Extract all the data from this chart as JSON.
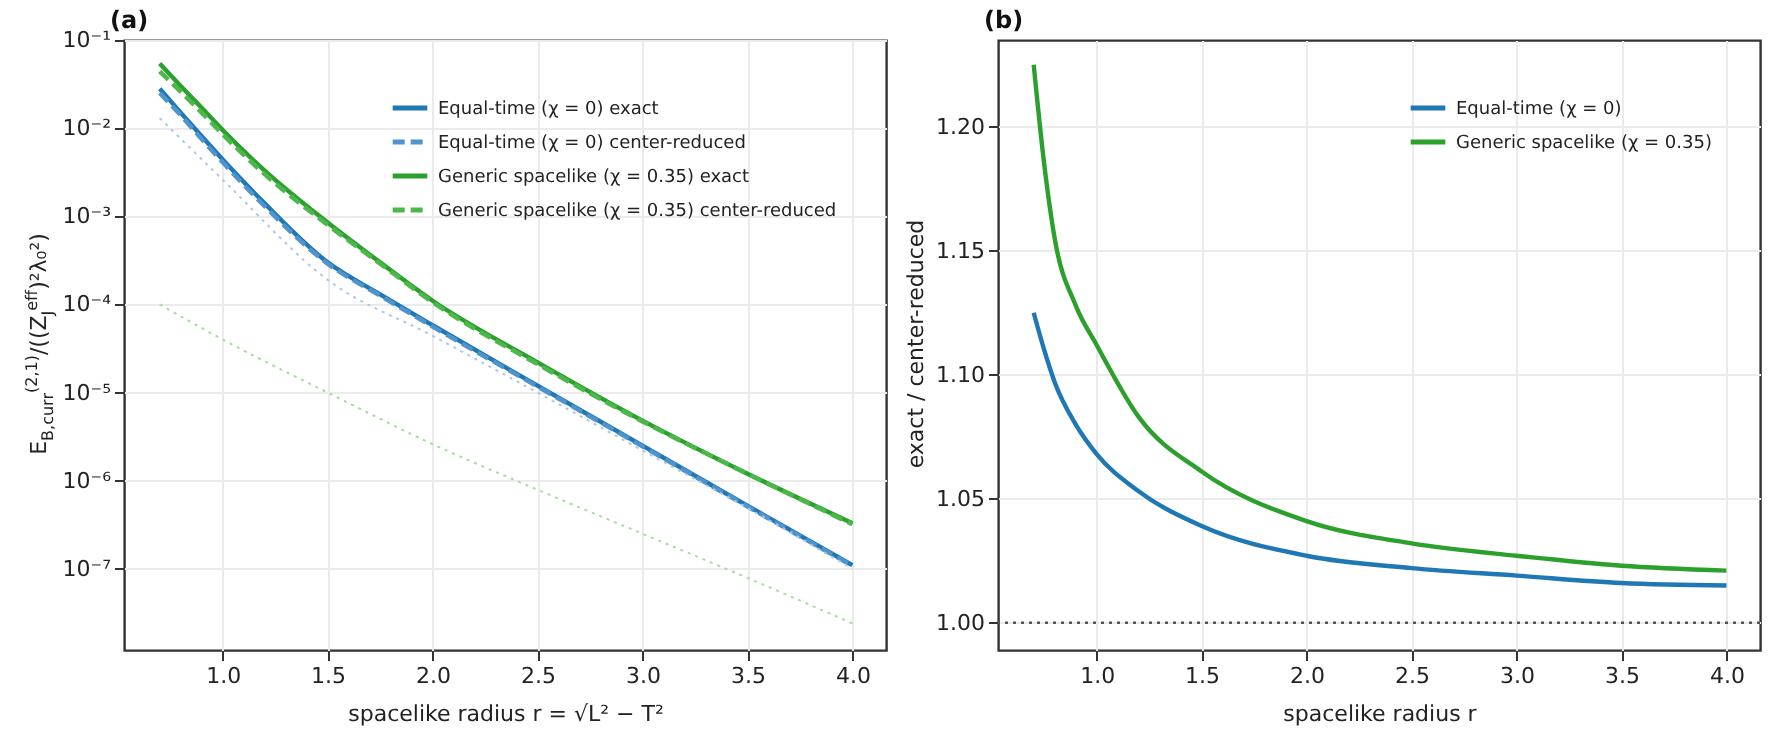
{
  "chart_data": [
    {
      "type": "line",
      "title": "(a)",
      "xlabel": "spacelike radius r = √L² − T²",
      "ylabel": "E$_{B,curr}$$^{(2,1)}$/((Z$_{J}$$^{eff}$)²λ₀²)",
      "x": [
        0.7,
        0.8,
        0.9,
        1.0,
        1.2,
        1.5,
        1.75,
        2.0,
        2.5,
        3.0,
        3.5,
        4.0
      ],
      "series": [
        {
          "name": "Equal-time (χ = 0) exact",
          "color": "#1f77b4",
          "line_style": "solid",
          "values": [
            0.028,
            0.015,
            0.0081,
            0.0044,
            0.0014,
            0.0003,
            0.00013,
            5.8e-05,
            1.2e-05,
            2.5e-06,
            5.2e-07,
            1.1e-07
          ]
        },
        {
          "name": "Equal-time (χ = 0) center-reduced",
          "color": "#4f94cd",
          "line_style": "dashed",
          "values": [
            0.025,
            0.014,
            0.0075,
            0.0041,
            0.0013,
            0.00029,
            0.000126,
            5.6e-05,
            1.17e-05,
            2.45e-06,
            5.1e-07,
            1.08e-07
          ]
        },
        {
          "name": "Generic spacelike (χ = 0.35) exact",
          "color": "#2ca02c",
          "line_style": "solid",
          "values": [
            0.054,
            0.03,
            0.017,
            0.0095,
            0.0033,
            0.00085,
            0.0003,
            0.00011,
            2.2e-05,
            4.8e-06,
            1.2e-06,
            3.3e-07
          ]
        },
        {
          "name": "Generic spacelike (χ = 0.35) center-reduced",
          "color": "#4cb84c",
          "line_style": "dashed",
          "values": [
            0.044,
            0.026,
            0.015,
            0.0085,
            0.003,
            0.0008,
            0.00029,
            0.000106,
            2.1e-05,
            4.7e-06,
            1.2e-06,
            3.2e-07
          ]
        },
        {
          "color": "#aec7e8",
          "line_style": "dotted",
          "x": [
            0.7,
            1.0,
            1.5,
            2.0,
            2.5,
            3.0,
            3.5,
            4.0
          ],
          "values": [
            0.013,
            0.0026,
            0.00019,
            4.4e-05,
            1e-05,
            2.2e-06,
            4.9e-07,
            1e-07
          ]
        },
        {
          "color": "#a8dca0",
          "line_style": "dotted",
          "x": [
            0.7,
            1.0,
            1.5,
            2.0,
            2.5,
            3.0,
            3.5,
            4.0
          ],
          "values": [
            0.0001,
            4e-05,
            1e-05,
            2.6e-06,
            7.9e-07,
            2.5e-07,
            7.9e-08,
            2.4e-08
          ]
        }
      ],
      "xlim": [
        0.53,
        4.16
      ],
      "xticks": [
        {
          "value": 1.0,
          "label": "1.0"
        },
        {
          "value": 1.5,
          "label": "1.5"
        },
        {
          "value": 2.0,
          "label": "2.0"
        },
        {
          "value": 2.5,
          "label": "2.5"
        },
        {
          "value": 3.0,
          "label": "3.0"
        },
        {
          "value": 3.5,
          "label": "3.5"
        },
        {
          "value": 4.0,
          "label": "4.0"
        }
      ],
      "ylim": [
        1.2e-08,
        0.1
      ],
      "yticks": [
        {
          "value": 1e-07,
          "label": "10⁻⁷"
        },
        {
          "value": 1e-06,
          "label": "10⁻⁶"
        },
        {
          "value": 1e-05,
          "label": "10⁻⁵"
        },
        {
          "value": 0.0001,
          "label": "10⁻⁴"
        },
        {
          "value": 0.001,
          "label": "10⁻³"
        },
        {
          "value": 0.01,
          "label": "10⁻²"
        },
        {
          "value": 0.1,
          "label": "10⁻¹"
        }
      ],
      "log": "y",
      "grid": true,
      "legend": "top right"
    },
    {
      "type": "line",
      "title": "(b)",
      "xlabel": "spacelike radius r",
      "ylabel": "exact / center-reduced",
      "x": [
        0.7,
        0.75,
        0.8,
        0.9,
        1.0,
        1.2,
        1.5,
        2.0,
        2.5,
        3.0,
        3.5,
        4.0
      ],
      "series": [
        {
          "name": "Equal-time (χ = 0)",
          "color": "#1f77b4",
          "line_style": "solid",
          "values": [
            1.125,
            1.11,
            1.097,
            1.08,
            1.068,
            1.053,
            1.039,
            1.027,
            1.022,
            1.019,
            1.016,
            1.015
          ]
        },
        {
          "name": "Generic spacelike (χ = 0.35)",
          "color": "#2ca02c",
          "line_style": "solid",
          "values": [
            1.225,
            1.185,
            1.155,
            1.128,
            1.112,
            1.083,
            1.061,
            1.041,
            1.032,
            1.027,
            1.023,
            1.021
          ]
        }
      ],
      "xlim": [
        0.53,
        4.16
      ],
      "xticks": [
        {
          "value": 1.0,
          "label": "1.0"
        },
        {
          "value": 1.5,
          "label": "1.5"
        },
        {
          "value": 2.0,
          "label": "2.0"
        },
        {
          "value": 2.5,
          "label": "2.5"
        },
        {
          "value": 3.0,
          "label": "3.0"
        },
        {
          "value": 3.5,
          "label": "3.5"
        },
        {
          "value": 4.0,
          "label": "4.0"
        }
      ],
      "ylim": [
        0.989,
        1.235
      ],
      "yticks": [
        {
          "value": 1.0,
          "label": "1.00"
        },
        {
          "value": 1.05,
          "label": "1.05"
        },
        {
          "value": 1.1,
          "label": "1.10"
        },
        {
          "value": 1.15,
          "label": "1.15"
        },
        {
          "value": 1.2,
          "label": "1.20"
        }
      ],
      "ref_lines": [
        {
          "axis": "y",
          "value": 1.0,
          "color": "#555555",
          "line_style": "dotted"
        }
      ],
      "grid": true,
      "legend": "top right"
    }
  ]
}
